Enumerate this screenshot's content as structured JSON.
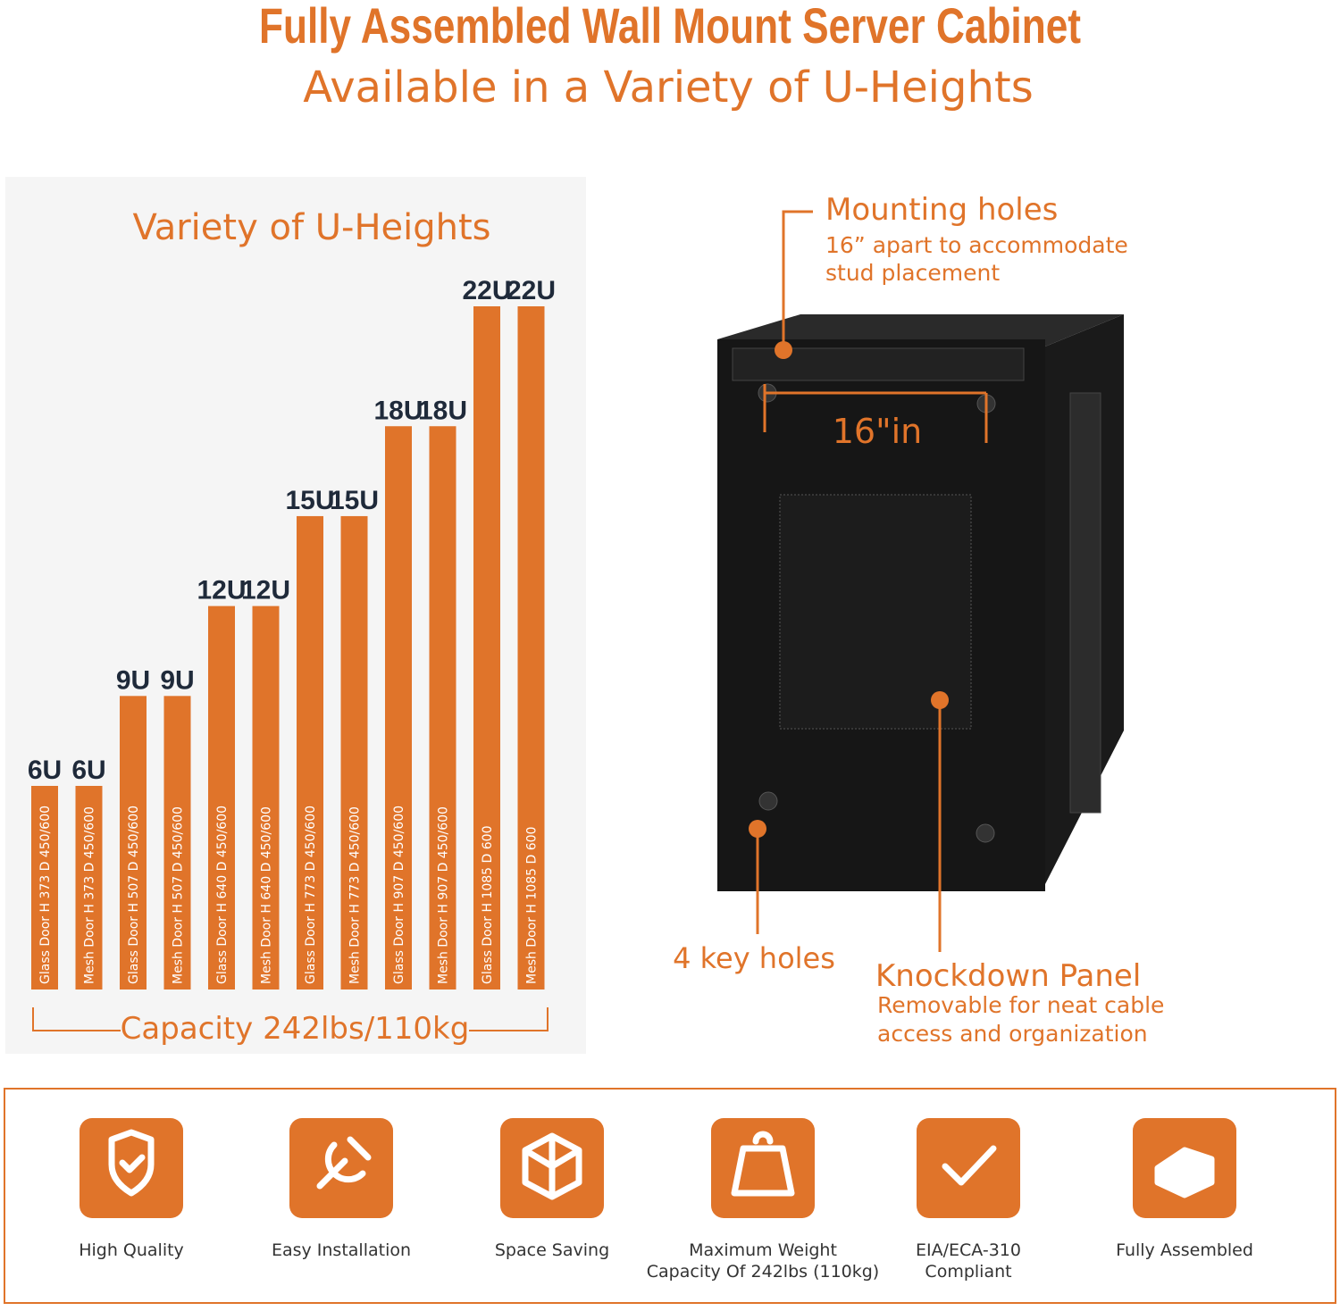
{
  "header": {
    "title": "Fully Assembled Wall Mount Server Cabinet",
    "subtitle": "Available in a Variety of U-Heights"
  },
  "heights_panel": {
    "title": "Variety of U-Heights",
    "bars": [
      {
        "u": {
          "value": 6,
          "label": "6U"
        },
        "spec": "Glass Door   H 373   D 450/600"
      },
      {
        "u": {
          "value": 6,
          "label": "6U"
        },
        "spec": "Mesh Door   H 373   D 450/600"
      },
      {
        "u": {
          "value": 9,
          "label": "9U"
        },
        "spec": "Glass Door   H 507   D 450/600"
      },
      {
        "u": {
          "value": 9,
          "label": "9U"
        },
        "spec": "Mesh Door   H 507   D 450/600"
      },
      {
        "u": {
          "value": 12,
          "label": "12U"
        },
        "spec": "Glass Door   H 640   D 450/600"
      },
      {
        "u": {
          "value": 12,
          "label": "12U"
        },
        "spec": "Mesh Door   H 640   D 450/600"
      },
      {
        "u": {
          "value": 15,
          "label": "15U"
        },
        "spec": "Glass Door   H 773   D 450/600"
      },
      {
        "u": {
          "value": 15,
          "label": "15U"
        },
        "spec": "Mesh Door   H 773   D 450/600"
      },
      {
        "u": {
          "value": 18,
          "label": "18U"
        },
        "spec": "Glass Door   H 907   D 450/600"
      },
      {
        "u": {
          "value": 18,
          "label": "18U"
        },
        "spec": "Mesh Door   H 907   D 450/600"
      },
      {
        "u": {
          "value": 22,
          "label": "22U"
        },
        "spec": "Glass Door   H 1085   D 600"
      },
      {
        "u": {
          "value": 22,
          "label": "22U"
        },
        "spec": "Mesh Door   H 1085   D 600"
      }
    ],
    "capacity": "Capacity 242lbs/110kg"
  },
  "cabinet": {
    "mounting_title": "Mounting holes",
    "mounting_note": [
      "16” apart to accommodate",
      "stud placement"
    ],
    "spacing": "16\"in",
    "key_holes": "4 key holes",
    "panel_title": "Knockdown Panel",
    "panel_note": [
      "Removable for neat cable",
      "access and organization"
    ]
  },
  "features": [
    {
      "label": [
        "High Quality"
      ]
    },
    {
      "label": [
        "Easy Installation"
      ]
    },
    {
      "label": [
        "Space Saving"
      ]
    },
    {
      "label": [
        "Maximum Weight",
        "Capacity Of 242lbs (110kg)"
      ]
    },
    {
      "label": [
        "EIA/ECA-310",
        "Compliant"
      ]
    },
    {
      "label": [
        "Fully Assembled"
      ]
    }
  ]
}
